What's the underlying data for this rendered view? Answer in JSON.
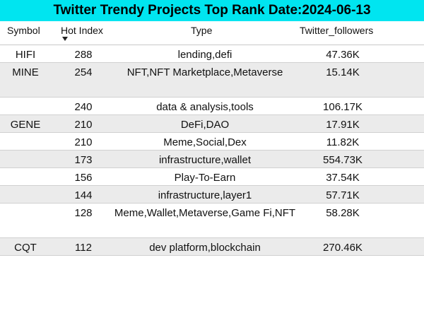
{
  "title": "Twitter Trendy Projects Top Rank Date:2024-06-13",
  "columns": {
    "symbol": "Symbol",
    "hot_index": "Hot Index",
    "type": "Type",
    "followers": "Twitter_followers"
  },
  "sort": {
    "column": "Hot Index",
    "direction": "descending",
    "icon": "sort-down-arrow"
  },
  "colors": {
    "title_bg": "#00e5f0",
    "alt_row_bg": "#ebebeb"
  },
  "rows": [
    {
      "symbol": "HIFI",
      "hot_index": "288",
      "type": "lending,defi",
      "followers": "47.36K"
    },
    {
      "symbol": "MINE",
      "hot_index": "254",
      "type": "NFT,NFT Marketplace,Metaverse",
      "followers": "15.14K"
    },
    {
      "symbol": "",
      "hot_index": "240",
      "type": "data & analysis,tools",
      "followers": "106.17K"
    },
    {
      "symbol": "GENE",
      "hot_index": "210",
      "type": "DeFi,DAO",
      "followers": "17.91K"
    },
    {
      "symbol": "",
      "hot_index": "210",
      "type": "Meme,Social,Dex",
      "followers": "11.82K"
    },
    {
      "symbol": "",
      "hot_index": "173",
      "type": "infrastructure,wallet",
      "followers": "554.73K"
    },
    {
      "symbol": "",
      "hot_index": "156",
      "type": "Play-To-Earn",
      "followers": "37.54K"
    },
    {
      "symbol": "",
      "hot_index": "144",
      "type": "infrastructure,layer1",
      "followers": "57.71K"
    },
    {
      "symbol": "",
      "hot_index": "128",
      "type": "Meme,Wallet,Metaverse,Game Fi,NFT",
      "followers": "58.28K"
    },
    {
      "symbol": "CQT",
      "hot_index": "112",
      "type": "dev platform,blockchain",
      "followers": "270.46K"
    }
  ]
}
